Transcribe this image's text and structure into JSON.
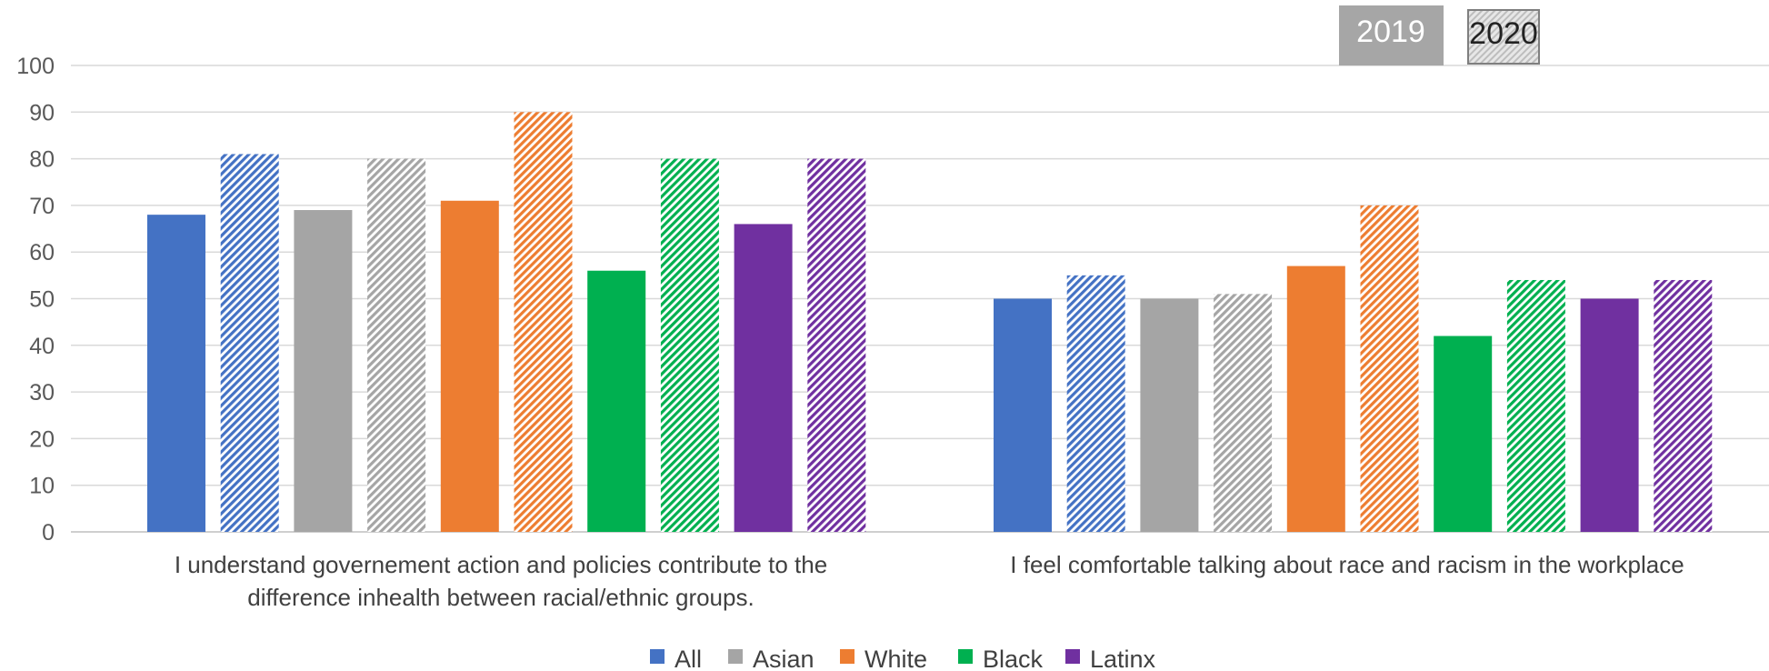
{
  "chart_data": {
    "type": "bar",
    "categories": [
      [
        "I understand governement action and policies contribute to the",
        "difference inhealth between racial/ethnic groups."
      ],
      [
        "I feel comfortable talking about race and racism in the  workplace"
      ]
    ],
    "ylim": [
      0,
      100
    ],
    "yticks": [
      0,
      10,
      20,
      30,
      40,
      50,
      60,
      70,
      80,
      90,
      100
    ],
    "grid": true,
    "legend_position": "bottom",
    "years": [
      "2019",
      "2020"
    ],
    "series": [
      {
        "name": "All",
        "color": "#4472C4",
        "values": {
          "2019": [
            68,
            50
          ],
          "2020": [
            81,
            55
          ]
        }
      },
      {
        "name": "Asian",
        "color": "#A5A5A5",
        "values": {
          "2019": [
            69,
            50
          ],
          "2020": [
            80,
            51
          ]
        }
      },
      {
        "name": "White",
        "color": "#ED7D31",
        "values": {
          "2019": [
            71,
            57
          ],
          "2020": [
            90,
            70
          ]
        }
      },
      {
        "name": "Black",
        "color": "#00B050",
        "values": {
          "2019": [
            56,
            42
          ],
          "2020": [
            80,
            54
          ]
        }
      },
      {
        "name": "Latinx",
        "color": "#7030A0",
        "values": {
          "2019": [
            66,
            50
          ],
          "2020": [
            80,
            54
          ]
        }
      }
    ],
    "style_note_colors": {
      "grid": "#D9D9D9",
      "axis": "#BFBFBF",
      "badge_2019": "#A6A6A6",
      "badge_2020": "#D9D9D9"
    }
  }
}
